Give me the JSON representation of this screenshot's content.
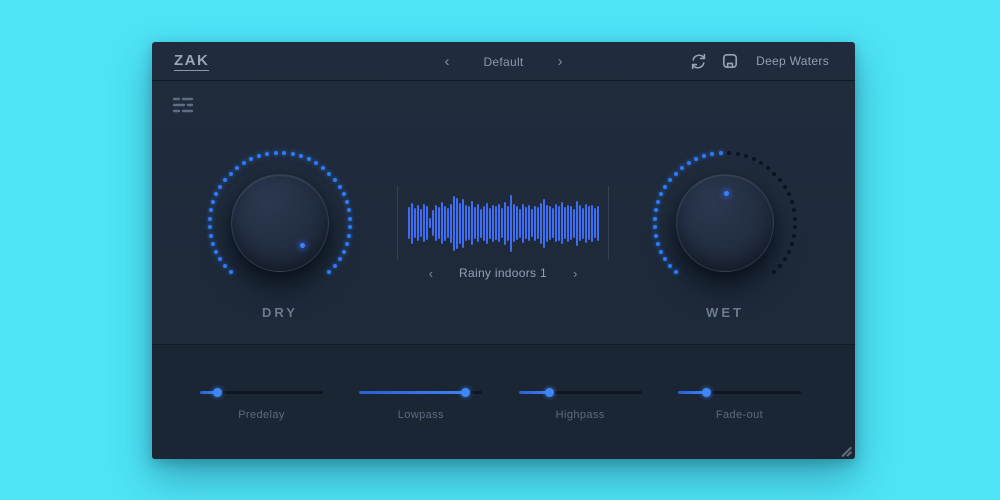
{
  "app": {
    "logo": "ZAK",
    "preset_bar": {
      "prev_icon": "‹",
      "preset_name": "Default",
      "next_icon": "›"
    },
    "header_icons": {
      "refresh": "refresh-icon",
      "save": "save-icon"
    },
    "bank_name": "Deep Waters"
  },
  "knobs": [
    {
      "id": "dry",
      "label": "DRY",
      "value": 1.0
    },
    {
      "id": "wet",
      "label": "WET",
      "value": 0.5
    }
  ],
  "knob_ring": {
    "dot_count": 40,
    "arc_degrees": 270,
    "radius": 70,
    "indicator_radius": 31
  },
  "sample": {
    "prev_icon": "‹",
    "name": "Rainy indoors 1",
    "next_icon": "›",
    "waveform": [
      0.55,
      0.7,
      0.52,
      0.62,
      0.48,
      0.66,
      0.58,
      0.18,
      0.45,
      0.62,
      0.55,
      0.72,
      0.6,
      0.52,
      0.68,
      0.95,
      0.88,
      0.7,
      0.85,
      0.62,
      0.58,
      0.75,
      0.55,
      0.65,
      0.5,
      0.6,
      0.7,
      0.54,
      0.63,
      0.58,
      0.66,
      0.52,
      0.74,
      0.6,
      0.98,
      0.66,
      0.58,
      0.5,
      0.68,
      0.56,
      0.62,
      0.48,
      0.6,
      0.55,
      0.7,
      0.85,
      0.64,
      0.58,
      0.52,
      0.66,
      0.6,
      0.72,
      0.55,
      0.63,
      0.58,
      0.5,
      0.78,
      0.62,
      0.54,
      0.68,
      0.58,
      0.64,
      0.52,
      0.6
    ]
  },
  "sliders": [
    {
      "label": "Predelay",
      "value": 0.14
    },
    {
      "label": "Lowpass",
      "value": 0.86
    },
    {
      "label": "Highpass",
      "value": 0.25
    },
    {
      "label": "Fade-out",
      "value": 0.23
    }
  ],
  "colors": {
    "background_cyan": "#4ee3f7",
    "panel_dark": "#1e2a3a",
    "bottom_panel": "#1b2634",
    "accent_blue": "#2e7bf8",
    "waveform_blue": "#3f6cf0",
    "text_light": "#93a0b2",
    "text_dim": "#5b6a80"
  }
}
